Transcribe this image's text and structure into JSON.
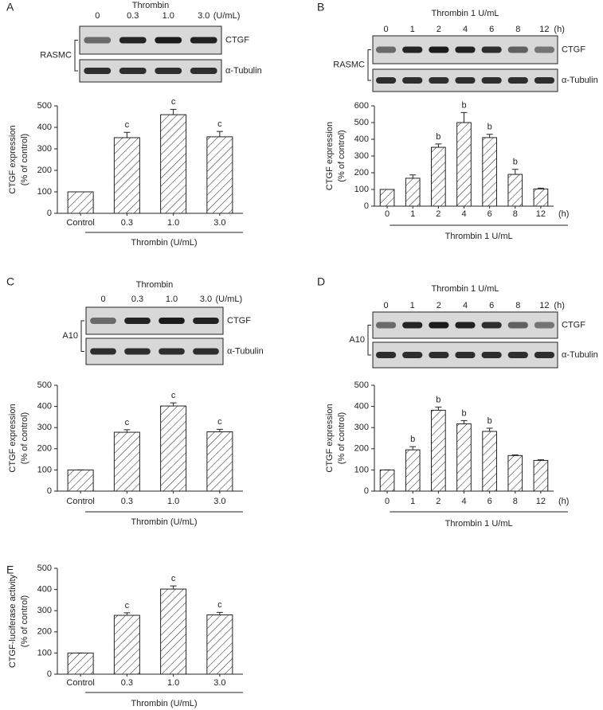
{
  "chart_data": [
    {
      "type": "bar",
      "panel": "A",
      "blot": {
        "title": "Thrombin",
        "lanes": [
          "0",
          "0.3",
          "1.0",
          "3.0"
        ],
        "unit": "(U/mL)",
        "cell": "RASMC",
        "bands": [
          "CTGF",
          "α-Tubulin"
        ]
      },
      "categories": [
        "Control",
        "0.3",
        "1.0",
        "3.0"
      ],
      "values": [
        100,
        352,
        459,
        356
      ],
      "errors": [
        0,
        25,
        25,
        25
      ],
      "annotations": [
        null,
        "c",
        "c",
        "c"
      ],
      "ylabel": [
        "CTGF expression",
        "(% of control)"
      ],
      "ylim": [
        0,
        500
      ],
      "yticks": [
        0,
        100,
        200,
        300,
        400,
        500
      ],
      "xlabel": "Thrombin (U/mL)"
    },
    {
      "type": "bar",
      "panel": "B",
      "blot": {
        "title": "Thrombin 1 U/mL",
        "lanes": [
          "0",
          "1",
          "2",
          "4",
          "6",
          "8",
          "12"
        ],
        "unit": "(h)",
        "cell": "RASMC",
        "bands": [
          "CTGF",
          "α-Tubulin"
        ]
      },
      "categories": [
        "0",
        "1",
        "2",
        "4",
        "6",
        "8",
        "12"
      ],
      "x_unit": "(h)",
      "values": [
        100,
        167,
        352,
        500,
        410,
        190,
        103
      ],
      "errors": [
        0,
        20,
        20,
        60,
        20,
        30,
        5
      ],
      "annotations": [
        null,
        null,
        "b",
        "b",
        "b",
        "b",
        null
      ],
      "ylabel": [
        "CTGF expression",
        "(% of control)"
      ],
      "ylim": [
        0,
        600
      ],
      "yticks": [
        0,
        100,
        200,
        300,
        400,
        500,
        600
      ],
      "xlabel": "Thrombin 1 U/mL"
    },
    {
      "type": "bar",
      "panel": "C",
      "blot": {
        "title": "Thrombin",
        "lanes": [
          "0",
          "0.3",
          "1.0",
          "3.0"
        ],
        "unit": "(U/mL)",
        "cell": "A10",
        "bands": [
          "CTGF",
          "α-Tubulin"
        ]
      },
      "categories": [
        "Control",
        "0.3",
        "1.0",
        "3.0"
      ],
      "values": [
        100,
        278,
        402,
        280
      ],
      "errors": [
        0,
        12,
        15,
        12
      ],
      "annotations": [
        null,
        "c",
        "c",
        "c"
      ],
      "ylabel": [
        "CTGF expression",
        "(% of control)"
      ],
      "ylim": [
        0,
        500
      ],
      "yticks": [
        0,
        100,
        200,
        300,
        400,
        500
      ],
      "xlabel": "Thrombin (U/mL)"
    },
    {
      "type": "bar",
      "panel": "D",
      "blot": {
        "title": "Thrombin 1 U/mL",
        "lanes": [
          "0",
          "1",
          "2",
          "4",
          "6",
          "8",
          "12"
        ],
        "unit": "(h)",
        "cell": "A10",
        "bands": [
          "CTGF",
          "α-Tubulin"
        ]
      },
      "categories": [
        "0",
        "1",
        "2",
        "4",
        "6",
        "8",
        "12"
      ],
      "x_unit": "(h)",
      "values": [
        100,
        195,
        382,
        318,
        282,
        168,
        145
      ],
      "errors": [
        0,
        15,
        15,
        15,
        15,
        3,
        3
      ],
      "annotations": [
        null,
        "b",
        "b",
        "b",
        "b",
        null,
        null
      ],
      "ylabel": [
        "CTGF expression",
        "(% of control)"
      ],
      "ylim": [
        0,
        500
      ],
      "yticks": [
        0,
        100,
        200,
        300,
        400,
        500
      ],
      "xlabel": "Thrombin 1 U/mL"
    },
    {
      "type": "bar",
      "panel": "E",
      "categories": [
        "Control",
        "0.3",
        "1.0",
        "3.0"
      ],
      "values": [
        100,
        278,
        402,
        280
      ],
      "errors": [
        0,
        12,
        15,
        12
      ],
      "annotations": [
        null,
        "c",
        "c",
        "c"
      ],
      "ylabel": [
        "CTGF-luciferase activity",
        "(% of control)"
      ],
      "ylim": [
        0,
        500
      ],
      "yticks": [
        0,
        100,
        200,
        300,
        400,
        500
      ],
      "xlabel": "Thrombin (U/mL)"
    }
  ]
}
